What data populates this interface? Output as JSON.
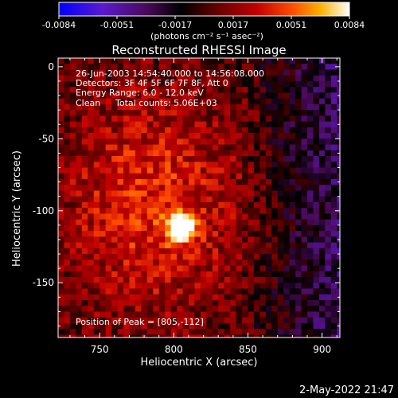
{
  "chart_data": {
    "type": "heatmap",
    "title": "Reconstructed RHESSI Image",
    "xlabel": "Heliocentric X (arcsec)",
    "ylabel": "Heliocentric Y (arcsec)",
    "xlim": [
      722,
      912
    ],
    "ylim": [
      -188,
      6
    ],
    "x_ticks": [
      750,
      800,
      850,
      900
    ],
    "y_ticks": [
      0,
      -50,
      -100,
      -150
    ],
    "colorbar": {
      "range": [
        -0.0084,
        0.0084
      ],
      "ticks": [
        "-0.0084",
        "-0.0051",
        "-0.0017",
        "0.0017",
        "0.0051",
        "0.0084"
      ],
      "unit_label": "(photons cm⁻² s⁻¹ asec⁻²)"
    },
    "annotations": {
      "time_range": "26-Jun-2003 14:54:40.000 to 14:56:08.000",
      "detectors": "Detectors: 3F 4F 5F 6F 7F 8F, Att 0",
      "energy_range": "Energy Range: 6.0 - 12.0 keV",
      "clean_label": "Clean",
      "total_counts": "Total counts: 5.06E+03",
      "peak_position": "Position of Peak = [805,-112]"
    },
    "peak": {
      "x": 805,
      "y": -112,
      "value": 0.0084
    },
    "colormap": [
      "#0000ff",
      "#6a1fb8",
      "#3a0a3a",
      "#000000",
      "#5a0000",
      "#b00000",
      "#ff3000",
      "#ff9000",
      "#ffe060",
      "#ffffff"
    ]
  },
  "footer": {
    "timestamp": "2-May-2022 21:47"
  }
}
